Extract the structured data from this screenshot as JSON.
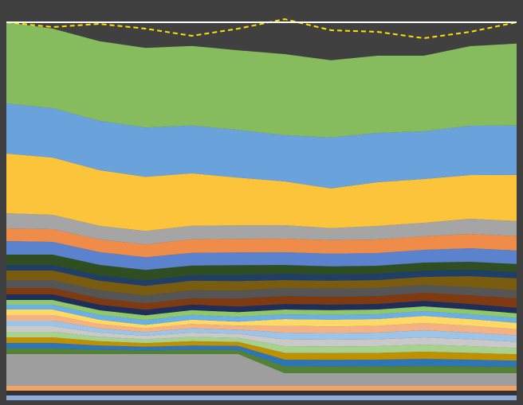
{
  "chart_data": {
    "type": "area",
    "stacked": true,
    "categories": [
      null,
      null,
      null,
      null,
      null,
      null,
      null,
      null,
      null,
      null,
      null,
      null
    ],
    "ylim": [
      0,
      97
    ],
    "yticks": [
      95
    ],
    "grid": true,
    "background": "#404040",
    "series": [
      {
        "color": "#8faadc",
        "values": [
          1.2,
          1.2,
          1.2,
          1.2,
          1.2,
          1.2,
          1.2,
          1.2,
          1.2,
          1.2,
          1.2,
          1.2
        ]
      },
      {
        "color": "#333333",
        "values": [
          1.2,
          1.2,
          1.2,
          1.2,
          1.2,
          1.2,
          1.2,
          1.2,
          1.2,
          1.2,
          1.2,
          1.2
        ]
      },
      {
        "color": "#f4a460",
        "values": [
          1.2,
          1.2,
          1.2,
          1.2,
          1.2,
          1.2,
          1.2,
          1.2,
          1.2,
          1.2,
          1.2,
          1.2
        ]
      },
      {
        "color": "#9e9e9e",
        "values": [
          8,
          8,
          8,
          8,
          8,
          8,
          3.2,
          3.2,
          3.2,
          3.2,
          3.2,
          3.2
        ]
      },
      {
        "color": "#548235",
        "values": [
          1.4,
          1.4,
          1.08,
          0.92,
          1.08,
          1.02,
          1.7,
          1.68,
          1.7,
          1.8,
          1.7,
          1.58
        ]
      },
      {
        "color": "#2e75b6",
        "values": [
          1.4,
          1.4,
          1.08,
          0.92,
          1.08,
          1.02,
          1.7,
          1.68,
          1.7,
          1.8,
          1.7,
          1.58
        ]
      },
      {
        "color": "#bf9000",
        "values": [
          1.4,
          1.4,
          1.08,
          0.92,
          1.08,
          1.02,
          1.7,
          1.68,
          1.7,
          1.8,
          1.7,
          1.58
        ]
      },
      {
        "color": "#a9d18e",
        "values": [
          1.4,
          1.4,
          1.08,
          0.92,
          1.08,
          1.02,
          1.7,
          1.68,
          1.7,
          1.8,
          1.7,
          1.58
        ]
      },
      {
        "color": "#c9c9c9",
        "values": [
          1.4,
          1.4,
          1.08,
          0.92,
          1.08,
          1.02,
          1.7,
          1.68,
          1.7,
          1.8,
          1.7,
          1.58
        ]
      },
      {
        "color": "#9dc3e6",
        "values": [
          1.4,
          1.4,
          1.08,
          0.92,
          1.08,
          1.02,
          1.7,
          1.68,
          1.7,
          1.8,
          1.7,
          1.58
        ]
      },
      {
        "color": "#f4b183",
        "values": [
          1.4,
          1.4,
          1.08,
          0.92,
          1.08,
          1.02,
          1.7,
          1.68,
          1.7,
          1.8,
          1.7,
          1.58
        ]
      },
      {
        "color": "#ffd966",
        "values": [
          1.4,
          1.4,
          1.08,
          0.92,
          1.08,
          1.02,
          1.7,
          1.68,
          1.7,
          1.8,
          1.7,
          1.58
        ]
      },
      {
        "color": "#6ab0e6",
        "values": [
          1.2,
          1.2,
          1.2,
          1.2,
          1.2,
          1.2,
          1.2,
          1.2,
          1.2,
          1.2,
          1.2,
          1.2
        ]
      },
      {
        "color": "#8fc86a",
        "values": [
          1.2,
          1.2,
          1.2,
          1.2,
          1.2,
          1.2,
          1.2,
          1.2,
          1.2,
          1.2,
          1.2,
          1.2
        ]
      },
      {
        "color": "#1f2f5a",
        "values": [
          1.4,
          1.4,
          1.4,
          1.4,
          1.4,
          1.4,
          1.4,
          1.4,
          1.4,
          1.4,
          1.4,
          1.4
        ]
      },
      {
        "color": "#7f3a12",
        "values": [
          1.6,
          1.6,
          1.6,
          1.6,
          1.6,
          2,
          2,
          2,
          2,
          2,
          2.2,
          2.4
        ]
      },
      {
        "color": "#555555",
        "values": [
          2,
          2,
          2,
          2,
          2,
          2,
          2,
          2,
          2,
          2,
          2,
          2
        ]
      },
      {
        "color": "#7a5c10",
        "values": [
          2.4,
          2.4,
          2.4,
          2.4,
          2.4,
          2.4,
          2,
          2,
          2,
          2,
          2.8,
          3
        ]
      },
      {
        "color": "#1f3f66",
        "values": [
          1.4,
          1.4,
          1.4,
          1.4,
          1.4,
          1.6,
          1.6,
          1.6,
          1.6,
          1.6,
          1.6,
          1.6
        ]
      },
      {
        "color": "#2f4f22",
        "values": [
          2.6,
          2.6,
          2.6,
          2.6,
          2.4,
          2.4,
          2.2,
          2,
          2,
          2,
          2,
          2
        ]
      },
      {
        "color": "#5b82cc",
        "values": [
          3.4,
          3.2,
          3.2,
          3.2,
          3.2,
          3.2,
          3.2,
          3.2,
          3.2,
          3.2,
          3.4,
          3.4
        ]
      },
      {
        "color": "#f08c4a",
        "values": [
          3.2,
          3.2,
          3.2,
          3.2,
          3.4,
          3.4,
          3.4,
          3.4,
          3.4,
          3.4,
          3.6,
          3.6
        ]
      },
      {
        "color": "#a5a5a5",
        "values": [
          3.8,
          3.6,
          3.4,
          3.4,
          3.4,
          3.4,
          3.4,
          3,
          3.4,
          3.4,
          3.8,
          3.8
        ]
      },
      {
        "color": "#fcc43a",
        "values": [
          15,
          14.4,
          14,
          13.6,
          13.2,
          12,
          11,
          10,
          11,
          11,
          11,
          11.6
        ]
      },
      {
        "color": "#6aa3dc",
        "values": [
          12.6,
          12.4,
          12.4,
          12.4,
          12,
          12,
          11.6,
          12.8,
          12.4,
          12,
          12.4,
          12.4
        ]
      },
      {
        "color": "#86bc5e",
        "values": [
          20.4,
          20,
          20,
          20,
          20,
          20,
          20.4,
          19.4,
          19.4,
          19,
          20,
          20.6
        ]
      },
      {
        "kind": "line",
        "style": "dashed",
        "color": "#ffe000",
        "values": [
          95,
          93.8,
          94.6,
          93.4,
          91.6,
          93.4,
          95.8,
          93,
          92.6,
          91,
          92.6,
          95
        ]
      }
    ]
  }
}
